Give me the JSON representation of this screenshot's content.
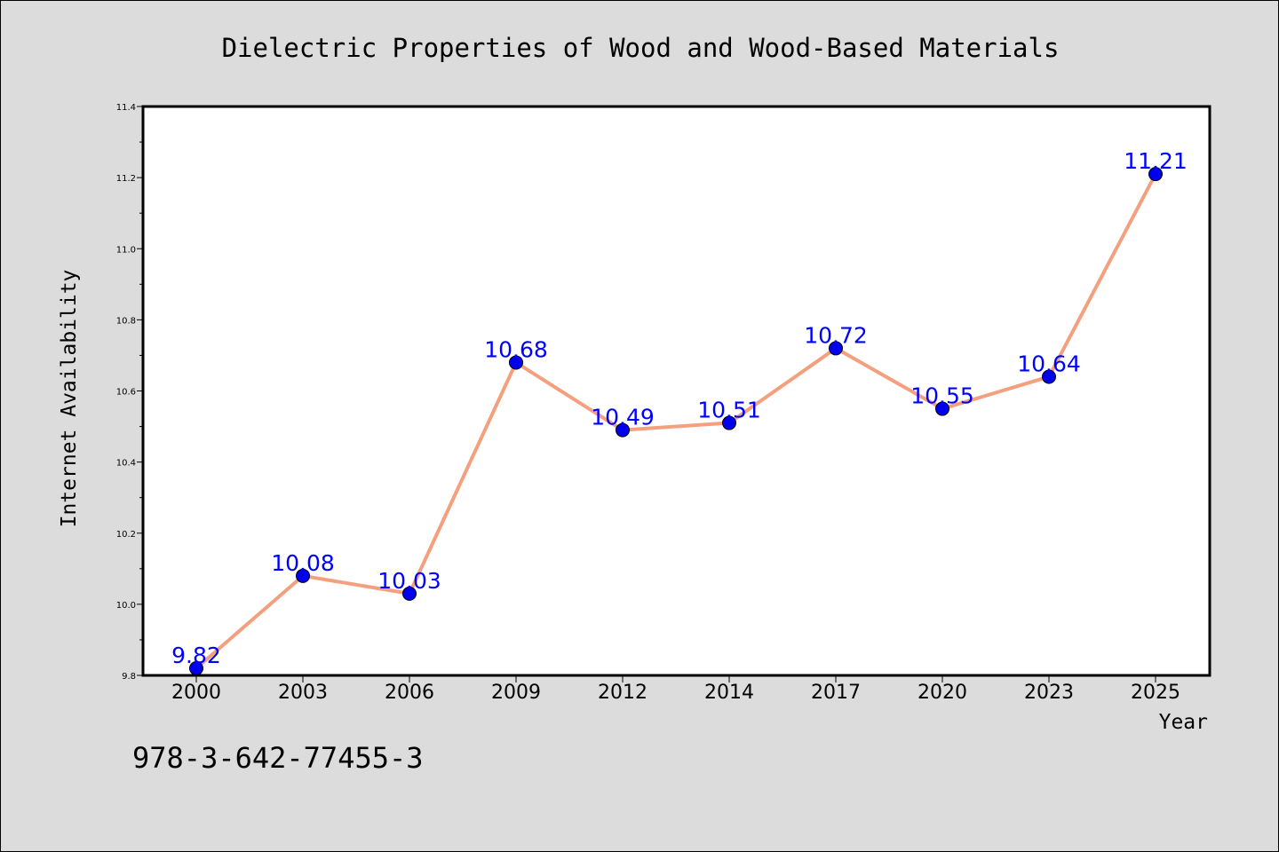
{
  "chart_data": {
    "type": "line",
    "title": "Dielectric Properties of Wood and Wood-Based Materials",
    "xlabel": "Year",
    "ylabel": "Internet Availability",
    "categories": [
      "2000",
      "2003",
      "2006",
      "2009",
      "2012",
      "2014",
      "2017",
      "2020",
      "2023",
      "2025"
    ],
    "series": [
      {
        "values": [
          9.82,
          10.08,
          10.03,
          10.68,
          10.49,
          10.51,
          10.72,
          10.55,
          10.64,
          11.21
        ]
      }
    ],
    "data_labels": [
      "9.82",
      "10.08",
      "10.03",
      "10.68",
      "10.49",
      "10.51",
      "10.72",
      "10.55",
      "10.64",
      "11.21"
    ],
    "ylim": [
      9.8,
      11.4
    ],
    "yticks": [
      "9.8",
      "10.0",
      "10.2",
      "10.4",
      "10.6",
      "10.8",
      "11.0",
      "11.2",
      "11.4"
    ],
    "grid": false,
    "legend": "none",
    "annotation": "978-3-642-77455-3",
    "colors": {
      "line": "#f4a07e",
      "marker": "#0000ee",
      "label": "#0000ff",
      "background": "#dcdcdc",
      "plot_background": "#ffffff"
    }
  }
}
